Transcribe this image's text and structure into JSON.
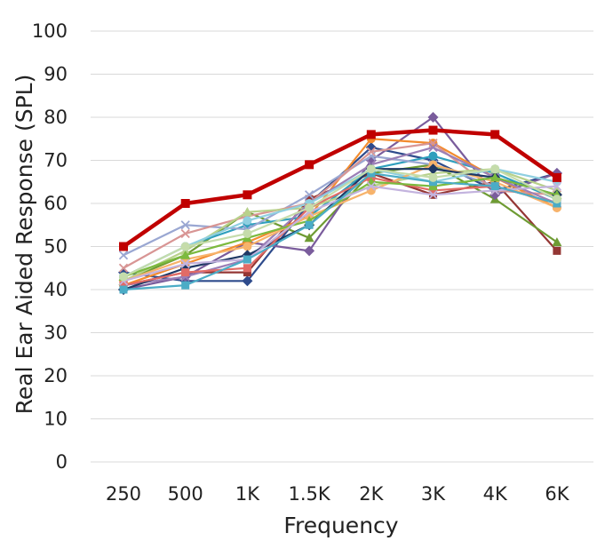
{
  "chart_data": {
    "type": "line",
    "title": "",
    "xlabel": "Frequency",
    "ylabel": "Real Ear Aided Response (SPL)",
    "categories": [
      "250",
      "500",
      "1K",
      "1.5K",
      "2K",
      "3K",
      "4K",
      "6K"
    ],
    "ylim": [
      0,
      100
    ],
    "yticks": [
      0,
      10,
      20,
      30,
      40,
      50,
      60,
      70,
      80,
      90,
      100
    ],
    "grid": true,
    "legend": "none",
    "series": [
      {
        "values": [
          44,
          42,
          42,
          60,
          73,
          70,
          63,
          67
        ],
        "color": "#2e4b8c",
        "marker": "diamond"
      },
      {
        "values": [
          41,
          44,
          44,
          61,
          67,
          62,
          65,
          49
        ],
        "color": "#943634",
        "marker": "square"
      },
      {
        "values": [
          42,
          48,
          58,
          52,
          67,
          69,
          61,
          51
        ],
        "color": "#6e9b33",
        "marker": "triangle"
      },
      {
        "values": [
          40,
          43,
          51,
          49,
          70,
          80,
          62,
          67
        ],
        "color": "#7a5c9c",
        "marker": "diamond"
      },
      {
        "values": [
          43,
          50,
          55,
          57,
          68,
          71,
          67,
          61
        ],
        "color": "#2f9fbd",
        "marker": "circle"
      },
      {
        "values": [
          41,
          46,
          51,
          57,
          75,
          74,
          66,
          59
        ],
        "color": "#f38b2e",
        "marker": "circle"
      },
      {
        "values": [
          48,
          55,
          54,
          62,
          71,
          69,
          64,
          60
        ],
        "color": "#9aa7d2",
        "marker": "cross"
      },
      {
        "values": [
          45,
          53,
          57,
          60,
          72,
          74,
          63,
          62
        ],
        "color": "#d89594",
        "marker": "cross"
      },
      {
        "values": [
          42,
          49,
          58,
          59,
          64,
          67,
          68,
          63
        ],
        "color": "#b8d18b",
        "marker": "triangle"
      },
      {
        "values": [
          41,
          43,
          47,
          60,
          69,
          73,
          66,
          60
        ],
        "color": "#9b7fb6",
        "marker": "cross"
      },
      {
        "values": [
          43,
          50,
          56,
          60,
          68,
          65,
          68,
          65
        ],
        "color": "#8fcfe0",
        "marker": "circle"
      },
      {
        "values": [
          42,
          47,
          50,
          57,
          63,
          69,
          65,
          59
        ],
        "color": "#f7b36b",
        "marker": "circle"
      },
      {
        "values": [
          40,
          45,
          48,
          55,
          68,
          68,
          66,
          62
        ],
        "color": "#1f3864",
        "marker": "diamond"
      },
      {
        "values": [
          41,
          44,
          45,
          59,
          66,
          63,
          64,
          60
        ],
        "color": "#e26b66",
        "marker": "square"
      },
      {
        "values": [
          43,
          48,
          52,
          56,
          65,
          64,
          66,
          62
        ],
        "color": "#7cba3f",
        "marker": "triangle"
      },
      {
        "values": [
          42,
          46,
          47,
          58,
          64,
          62,
          63,
          64
        ],
        "color": "#c3b3de",
        "marker": "cross"
      },
      {
        "values": [
          40,
          41,
          47,
          55,
          67,
          65,
          64,
          60
        ],
        "color": "#4bacc6",
        "marker": "square"
      },
      {
        "values": [
          43,
          50,
          53,
          59,
          68,
          66,
          68,
          61
        ],
        "color": "#c5dcab",
        "marker": "circle"
      },
      {
        "values": [
          50,
          60,
          62,
          69,
          76,
          77,
          76,
          66
        ],
        "color": "#c00000",
        "marker": "square",
        "emphasis": true
      }
    ]
  }
}
